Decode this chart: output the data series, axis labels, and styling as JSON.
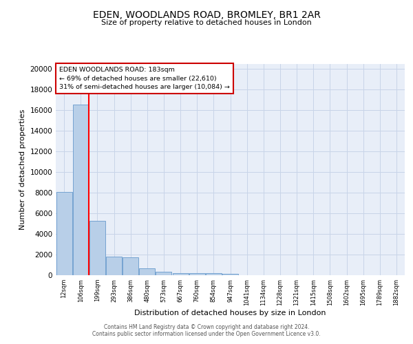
{
  "title": "EDEN, WOODLANDS ROAD, BROMLEY, BR1 2AR",
  "subtitle": "Size of property relative to detached houses in London",
  "xlabel": "Distribution of detached houses by size in London",
  "ylabel": "Number of detached properties",
  "bar_color": "#b8cfe8",
  "bar_edge_color": "#6699cc",
  "grid_color": "#c8d4e8",
  "background_color": "#e8eef8",
  "annotation_box_color": "#cc0000",
  "annotation_line1": "EDEN WOODLANDS ROAD: 183sqm",
  "annotation_line2": "← 69% of detached houses are smaller (22,610)",
  "annotation_line3": "31% of semi-detached houses are larger (10,084) →",
  "red_line_bin": 1,
  "categories": [
    "12sqm",
    "106sqm",
    "199sqm",
    "293sqm",
    "386sqm",
    "480sqm",
    "573sqm",
    "667sqm",
    "760sqm",
    "854sqm",
    "947sqm",
    "1041sqm",
    "1134sqm",
    "1228sqm",
    "1321sqm",
    "1415sqm",
    "1508sqm",
    "1602sqm",
    "1695sqm",
    "1789sqm",
    "1882sqm"
  ],
  "values": [
    8100,
    16500,
    5300,
    1800,
    1750,
    700,
    310,
    230,
    200,
    185,
    160,
    0,
    0,
    0,
    0,
    0,
    0,
    0,
    0,
    0,
    0
  ],
  "ylim": [
    0,
    20500
  ],
  "yticks": [
    0,
    2000,
    4000,
    6000,
    8000,
    10000,
    12000,
    14000,
    16000,
    18000,
    20000
  ],
  "footer_line1": "Contains HM Land Registry data © Crown copyright and database right 2024.",
  "footer_line2": "Contains public sector information licensed under the Open Government Licence v3.0."
}
